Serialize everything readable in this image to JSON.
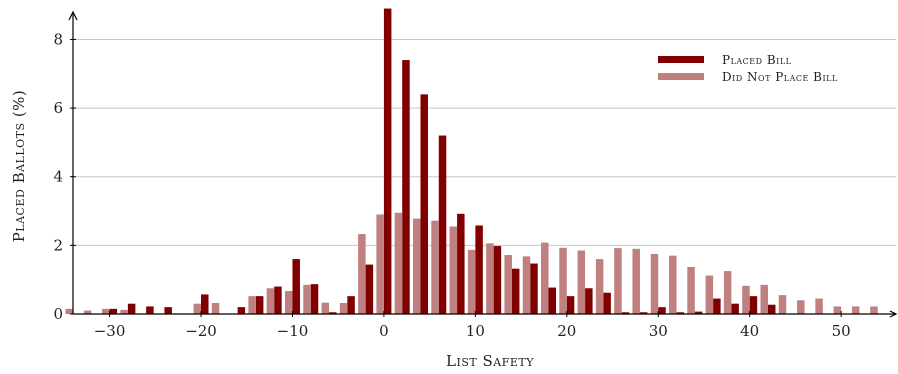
{
  "chart_data": {
    "type": "bar",
    "xlabel": "List Safety",
    "ylabel": "Placed Ballots (%)",
    "xlim": [
      -34,
      56
    ],
    "ylim": [
      0,
      8.8
    ],
    "xticks": [
      -30,
      -20,
      -10,
      0,
      10,
      20,
      30,
      40,
      50
    ],
    "xtick_labels": [
      "−30",
      "−20",
      "−10",
      "0",
      "10",
      "20",
      "30",
      "40",
      "50"
    ],
    "yticks": [
      0,
      2,
      4,
      6,
      8
    ],
    "ytick_labels": [
      "0",
      "2",
      "4",
      "6",
      "8"
    ],
    "grid": true,
    "legend_position": "top-right",
    "colors": {
      "placed": "#800000",
      "not_placed": "#c08080"
    },
    "x": [
      -34,
      -32,
      -30,
      -28,
      -26,
      -24,
      -22,
      -20,
      -18,
      -16,
      -14,
      -12,
      -10,
      -8,
      -6,
      -4,
      -2,
      0,
      2,
      4,
      6,
      8,
      10,
      12,
      14,
      16,
      18,
      20,
      22,
      24,
      26,
      28,
      30,
      32,
      34,
      36,
      38,
      40,
      42,
      44,
      46,
      48,
      50,
      52,
      54
    ],
    "series": [
      {
        "name": "Placed Bill",
        "color_key": "placed",
        "values": [
          0,
          0,
          0.15,
          0.3,
          0.22,
          0.2,
          0,
          0.57,
          0,
          0.2,
          0.52,
          0.8,
          1.6,
          0.87,
          0.05,
          0.52,
          1.44,
          8.9,
          7.4,
          6.4,
          5.2,
          2.92,
          2.58,
          1.98,
          1.32,
          1.47,
          0.77,
          0.52,
          0.75,
          0.62,
          0.05,
          0.05,
          0.2,
          0.05,
          0.07,
          0.45,
          0.3,
          0.52,
          0.27,
          0,
          0,
          0,
          0,
          0,
          0
        ]
      },
      {
        "name": "Did Not Place Bill",
        "color_key": "not_placed",
        "values": [
          0.15,
          0.1,
          0.15,
          0.12,
          0,
          0,
          0,
          0.3,
          0.32,
          0,
          0.52,
          0.75,
          0.67,
          0.85,
          0.33,
          0.32,
          2.33,
          2.9,
          2.95,
          2.78,
          2.72,
          2.55,
          1.87,
          2.06,
          1.72,
          1.68,
          2.08,
          1.93,
          1.85,
          1.6,
          1.92,
          1.9,
          1.75,
          1.7,
          1.37,
          1.12,
          1.25,
          0.82,
          0.85,
          0.55,
          0.4,
          0.45,
          0.22,
          0.22,
          0.22
        ]
      }
    ]
  }
}
